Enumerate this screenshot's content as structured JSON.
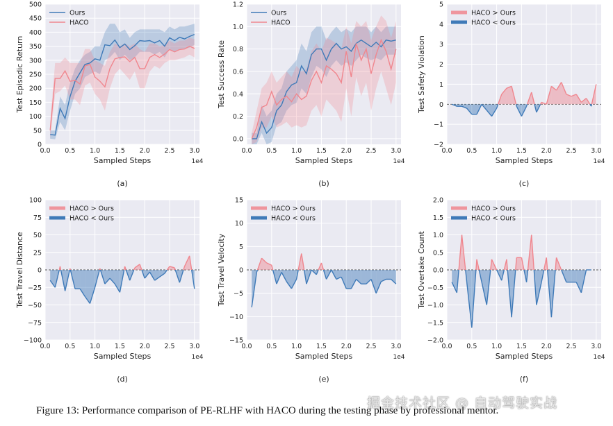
{
  "caption": "Figure 13: Performance comparison of PE-RLHF with HACO during the testing phase by professional mentor.",
  "watermark": "掘金技术社区 @ 自动驾驶实战",
  "colors": {
    "ours": "#3f7ab8",
    "haco": "#f0868e",
    "bg": "#eaeaf2",
    "grid": "#ffffff"
  },
  "chart_data": [
    {
      "id": "a",
      "type": "line",
      "panel_label": "(a)",
      "xlabel": "Sampled Steps",
      "ylabel": "Test Episodic Return",
      "offset_text": "1e4",
      "xlim": [
        0,
        3.1
      ],
      "ylim": [
        0,
        500
      ],
      "xticks": [
        0.0,
        0.5,
        1.0,
        1.5,
        2.0,
        2.5,
        3.0
      ],
      "xtick_labels": [
        "0.0",
        "0.5",
        "1.0",
        "1.5",
        "2.0",
        "2.5",
        "3.0"
      ],
      "yticks": [
        0,
        50,
        100,
        150,
        200,
        250,
        300,
        350,
        400,
        450,
        500
      ],
      "ytick_labels": [
        "0",
        "50",
        "100",
        "150",
        "200",
        "250",
        "300",
        "350",
        "400",
        "450",
        "500"
      ],
      "legend": [
        "Ours",
        "HACO"
      ],
      "x": [
        0.1,
        0.2,
        0.3,
        0.4,
        0.5,
        0.6,
        0.7,
        0.8,
        0.9,
        1.0,
        1.1,
        1.2,
        1.3,
        1.4,
        1.5,
        1.6,
        1.7,
        1.8,
        1.9,
        2.0,
        2.1,
        2.2,
        2.3,
        2.4,
        2.5,
        2.6,
        2.7,
        2.8,
        2.9,
        3.0
      ],
      "series": [
        {
          "name": "Ours",
          "values": [
            35,
            33,
            128,
            92,
            170,
            225,
            255,
            285,
            290,
            305,
            300,
            355,
            352,
            372,
            345,
            358,
            338,
            352,
            370,
            368,
            370,
            362,
            370,
            350,
            380,
            370,
            382,
            376,
            385,
            392
          ],
          "lower": [
            20,
            18,
            80,
            50,
            120,
            180,
            200,
            240,
            250,
            260,
            250,
            300,
            310,
            330,
            300,
            320,
            300,
            310,
            330,
            330,
            330,
            320,
            330,
            310,
            340,
            330,
            340,
            340,
            345,
            355
          ],
          "upper": [
            50,
            50,
            170,
            140,
            220,
            270,
            300,
            320,
            330,
            350,
            350,
            400,
            430,
            430,
            400,
            410,
            380,
            400,
            410,
            410,
            410,
            410,
            410,
            400,
            420,
            410,
            420,
            420,
            425,
            430
          ]
        },
        {
          "name": "HACO",
          "values": [
            50,
            235,
            235,
            262,
            225,
            228,
            215,
            280,
            285,
            240,
            225,
            205,
            270,
            305,
            310,
            312,
            295,
            310,
            270,
            270,
            310,
            320,
            310,
            322,
            338,
            330,
            338,
            340,
            350,
            342
          ],
          "lower": [
            20,
            180,
            190,
            210,
            160,
            160,
            140,
            210,
            220,
            180,
            160,
            120,
            200,
            250,
            270,
            250,
            230,
            260,
            200,
            200,
            260,
            280,
            270,
            290,
            300,
            300,
            305,
            310,
            320,
            310
          ],
          "upper": [
            80,
            290,
            290,
            310,
            290,
            290,
            290,
            340,
            340,
            300,
            290,
            280,
            330,
            360,
            350,
            360,
            350,
            360,
            340,
            330,
            360,
            360,
            350,
            355,
            370,
            360,
            370,
            370,
            380,
            375
          ]
        }
      ]
    },
    {
      "id": "b",
      "type": "line",
      "panel_label": "(b)",
      "xlabel": "Sampled Steps",
      "ylabel": "Test Success Rate",
      "offset_text": "1e4",
      "xlim": [
        0,
        3.1
      ],
      "ylim": [
        -0.05,
        1.2
      ],
      "xticks": [
        0.0,
        0.5,
        1.0,
        1.5,
        2.0,
        2.5,
        3.0
      ],
      "xtick_labels": [
        "0.0",
        "0.5",
        "1.0",
        "1.5",
        "2.0",
        "2.5",
        "3.0"
      ],
      "yticks": [
        0.0,
        0.2,
        0.4,
        0.6,
        0.8,
        1.0,
        1.2
      ],
      "ytick_labels": [
        "0.0",
        "0.2",
        "0.4",
        "0.6",
        "0.8",
        "1.0",
        "1.2"
      ],
      "legend": [
        "Ours",
        "HACO"
      ],
      "x": [
        0.1,
        0.2,
        0.3,
        0.4,
        0.5,
        0.6,
        0.7,
        0.8,
        0.9,
        1.0,
        1.1,
        1.2,
        1.3,
        1.4,
        1.5,
        1.6,
        1.7,
        1.8,
        1.9,
        2.0,
        2.1,
        2.2,
        2.3,
        2.4,
        2.5,
        2.6,
        2.7,
        2.8,
        2.9,
        3.0
      ],
      "series": [
        {
          "name": "Ours",
          "values": [
            0.0,
            0.0,
            0.15,
            0.05,
            0.1,
            0.25,
            0.3,
            0.42,
            0.48,
            0.5,
            0.65,
            0.58,
            0.75,
            0.8,
            0.8,
            0.7,
            0.8,
            0.85,
            0.8,
            0.82,
            0.78,
            0.85,
            0.88,
            0.85,
            0.82,
            0.86,
            0.82,
            0.88,
            0.87,
            0.88
          ],
          "lower": [
            -0.05,
            -0.05,
            0.05,
            -0.05,
            -0.03,
            0.12,
            0.15,
            0.25,
            0.3,
            0.32,
            0.45,
            0.4,
            0.55,
            0.65,
            0.62,
            0.55,
            0.65,
            0.7,
            0.65,
            0.68,
            0.65,
            0.7,
            0.75,
            0.72,
            0.7,
            0.72,
            0.7,
            0.75,
            0.75,
            0.75
          ],
          "upper": [
            0.05,
            0.05,
            0.3,
            0.2,
            0.25,
            0.4,
            0.45,
            0.6,
            0.65,
            0.7,
            0.85,
            0.78,
            0.95,
            1.0,
            1.0,
            0.88,
            0.95,
            1.0,
            0.95,
            0.98,
            0.95,
            1.0,
            1.0,
            1.0,
            0.95,
            1.0,
            0.95,
            1.0,
            1.0,
            1.0
          ]
        },
        {
          "name": "HACO",
          "values": [
            0.0,
            0.1,
            0.28,
            0.3,
            0.42,
            0.3,
            0.35,
            0.38,
            0.33,
            0.4,
            0.35,
            0.38,
            0.52,
            0.6,
            0.5,
            0.65,
            0.62,
            0.58,
            0.5,
            0.78,
            0.55,
            0.85,
            0.7,
            0.8,
            0.58,
            0.75,
            0.88,
            0.78,
            0.62,
            0.8
          ],
          "lower": [
            -0.05,
            -0.03,
            0.1,
            0.1,
            0.2,
            0.1,
            0.12,
            0.15,
            0.1,
            0.12,
            0.1,
            0.12,
            0.25,
            0.3,
            0.2,
            0.35,
            0.3,
            0.25,
            0.15,
            0.45,
            0.2,
            0.55,
            0.38,
            0.5,
            0.25,
            0.45,
            0.6,
            0.45,
            0.3,
            0.5
          ],
          "upper": [
            0.05,
            0.25,
            0.45,
            0.5,
            0.6,
            0.5,
            0.55,
            0.6,
            0.55,
            0.65,
            0.6,
            0.62,
            0.78,
            0.85,
            0.78,
            0.9,
            0.88,
            0.85,
            0.8,
            1.0,
            0.85,
            1.05,
            1.0,
            1.05,
            0.88,
            1.0,
            1.1,
            1.05,
            0.9,
            1.05
          ]
        }
      ]
    },
    {
      "id": "c",
      "type": "area",
      "panel_label": "(c)",
      "xlabel": "Sampled Steps",
      "ylabel": "Test Safety Violation",
      "offset_text": "1e4",
      "xlim": [
        0,
        3.1
      ],
      "ylim": [
        -2,
        5
      ],
      "xticks": [
        0.0,
        0.5,
        1.0,
        1.5,
        2.0,
        2.5,
        3.0
      ],
      "xtick_labels": [
        "0.0",
        "0.5",
        "1.0",
        "1.5",
        "2.0",
        "2.5",
        "3.0"
      ],
      "yticks": [
        -2,
        -1,
        0,
        1,
        2,
        3,
        4,
        5
      ],
      "ytick_labels": [
        "−2",
        "−1",
        "0",
        "1",
        "2",
        "3",
        "4",
        "5"
      ],
      "legend": [
        "HACO > Ours",
        "HACO < Ours"
      ],
      "x": [
        0.1,
        0.2,
        0.3,
        0.4,
        0.5,
        0.6,
        0.7,
        0.8,
        0.9,
        1.0,
        1.1,
        1.2,
        1.3,
        1.4,
        1.5,
        1.6,
        1.7,
        1.8,
        1.9,
        2.0,
        2.1,
        2.2,
        2.3,
        2.4,
        2.5,
        2.6,
        2.7,
        2.8,
        2.9,
        3.0
      ],
      "diff": [
        0,
        -0.1,
        -0.1,
        -0.2,
        -0.5,
        -0.5,
        0,
        -0.3,
        -0.6,
        -0.2,
        0.5,
        0.8,
        0.9,
        -0.1,
        -0.6,
        -0.1,
        0.6,
        -0.4,
        0.1,
        0,
        0.9,
        0.7,
        1.1,
        0.5,
        0.4,
        0.5,
        0.1,
        0.3,
        -0.1,
        1.0
      ]
    },
    {
      "id": "d",
      "type": "area",
      "panel_label": "(d)",
      "xlabel": "Sampled Steps",
      "ylabel": "Test Travel Distance",
      "offset_text": "1e4",
      "xlim": [
        0,
        3.1
      ],
      "ylim": [
        -100,
        100
      ],
      "xticks": [
        0.0,
        0.5,
        1.0,
        1.5,
        2.0,
        2.5,
        3.0
      ],
      "xtick_labels": [
        "0.0",
        "0.5",
        "1.0",
        "1.5",
        "2.0",
        "2.5",
        "3.0"
      ],
      "yticks": [
        -100,
        -75,
        -50,
        -25,
        0,
        25,
        50,
        75,
        100
      ],
      "ytick_labels": [
        "−100",
        "−75",
        "−50",
        "−25",
        "0",
        "25",
        "50",
        "75",
        "100"
      ],
      "legend": [
        "HACO > Ours",
        "HACO < Ours"
      ],
      "x": [
        0.1,
        0.2,
        0.3,
        0.4,
        0.5,
        0.6,
        0.7,
        0.8,
        0.9,
        1.0,
        1.1,
        1.2,
        1.3,
        1.4,
        1.5,
        1.6,
        1.7,
        1.8,
        1.9,
        2.0,
        2.1,
        2.2,
        2.3,
        2.4,
        2.5,
        2.6,
        2.7,
        2.8,
        2.9,
        3.0
      ],
      "diff": [
        -15,
        -25,
        5,
        -30,
        2,
        -27,
        -27,
        -38,
        -48,
        -25,
        2,
        -20,
        -12,
        -20,
        -32,
        5,
        -15,
        3,
        8,
        -12,
        -3,
        -15,
        -10,
        -5,
        5,
        3,
        -18,
        5,
        20,
        -27
      ]
    },
    {
      "id": "e",
      "type": "area",
      "panel_label": "(e)",
      "xlabel": "Sampled Steps",
      "ylabel": "Test Travel Velocity",
      "offset_text": "1e4",
      "xlim": [
        0,
        3.1
      ],
      "ylim": [
        -15,
        15
      ],
      "xticks": [
        0.0,
        0.5,
        1.0,
        1.5,
        2.0,
        2.5,
        3.0
      ],
      "xtick_labels": [
        "0.0",
        "0.5",
        "1.0",
        "1.5",
        "2.0",
        "2.5",
        "3.0"
      ],
      "yticks": [
        -15,
        -10,
        -5,
        0,
        5,
        10,
        15
      ],
      "ytick_labels": [
        "−15",
        "−10",
        "−5",
        "0",
        "5",
        "10",
        "15"
      ],
      "legend": [
        "HACO > Ours",
        "HACO < Ours"
      ],
      "x": [
        0.1,
        0.2,
        0.3,
        0.4,
        0.5,
        0.6,
        0.7,
        0.8,
        0.9,
        1.0,
        1.1,
        1.2,
        1.3,
        1.4,
        1.5,
        1.6,
        1.7,
        1.8,
        1.9,
        2.0,
        2.1,
        2.2,
        2.3,
        2.4,
        2.5,
        2.6,
        2.7,
        2.8,
        2.9,
        3.0
      ],
      "diff": [
        -8,
        -0.5,
        2.5,
        1.5,
        1,
        -3,
        -0.5,
        -2.5,
        -4,
        -2,
        3.5,
        -3,
        0,
        -1,
        1.5,
        -2,
        0,
        -2,
        -1.5,
        -4,
        -4,
        -2,
        -3,
        -3,
        -2,
        -5,
        -2.5,
        -2,
        -2,
        -3
      ]
    },
    {
      "id": "f",
      "type": "area",
      "panel_label": "(f)",
      "xlabel": "Sampled Steps",
      "ylabel": "Test Overtake Count",
      "offset_text": "1e4",
      "xlim": [
        0,
        3.1
      ],
      "ylim": [
        -2,
        2
      ],
      "xticks": [
        0.0,
        0.5,
        1.0,
        1.5,
        2.0,
        2.5,
        3.0
      ],
      "xtick_labels": [
        "0.0",
        "0.5",
        "1.0",
        "1.5",
        "2.0",
        "2.5",
        "3.0"
      ],
      "yticks": [
        -2.0,
        -1.5,
        -1.0,
        -0.5,
        0.0,
        0.5,
        1.0,
        1.5,
        2.0
      ],
      "ytick_labels": [
        "−2.0",
        "−1.5",
        "−1.0",
        "−0.5",
        "0.0",
        "0.5",
        "1.0",
        "1.5",
        "2.0"
      ],
      "legend": [
        "HACO > Ours",
        "HACO < Ours"
      ],
      "x": [
        0.1,
        0.2,
        0.3,
        0.4,
        0.5,
        0.6,
        0.7,
        0.8,
        0.9,
        1.0,
        1.1,
        1.2,
        1.3,
        1.4,
        1.5,
        1.6,
        1.7,
        1.8,
        1.9,
        2.0,
        2.1,
        2.2,
        2.3,
        2.4,
        2.5,
        2.6,
        2.7,
        2.8,
        2.9
      ],
      "diff": [
        -0.35,
        -0.65,
        1.0,
        -0.35,
        -1.65,
        0.3,
        -0.35,
        -1.0,
        0.3,
        0,
        -0.3,
        0.3,
        -1.35,
        0.35,
        0.35,
        -0.35,
        1.0,
        -1.0,
        -0.35,
        0.35,
        -1.35,
        0.35,
        0,
        -0.35,
        -0.35,
        -0.35,
        -0.65,
        0,
        0
      ]
    }
  ]
}
